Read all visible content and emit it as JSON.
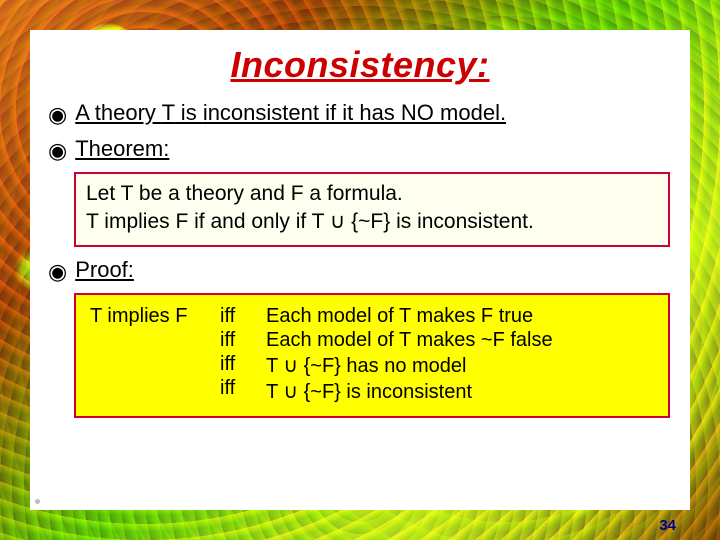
{
  "title": "Inconsistency:",
  "bullets": {
    "line1_pre": "A theory ",
    "line1_T": "T",
    "line1_mid": " is ",
    "line1_incon": "inconsistent",
    "line1_post": " if it has NO model.",
    "theorem_label": "Theorem:",
    "proof_label": "Proof:"
  },
  "theorem": {
    "line1": "Let T be a theory and F a formula.",
    "line2": "T implies F if and only if T ∪ {~F} is inconsistent."
  },
  "proof": {
    "lhs": "T implies F",
    "iff": "iff",
    "rhs": [
      "Each model of T makes F true",
      "Each model of T makes ~F false",
      "T ∪ {~F} has no model",
      "T ∪ {~F} is inconsistent"
    ]
  },
  "page_number": "34",
  "colors": {
    "title": "#cc0000",
    "box_border": "#cc0033",
    "theorem_bg": "#ffffef",
    "proof_bg": "#ffff00",
    "page_num": "#00008b"
  }
}
